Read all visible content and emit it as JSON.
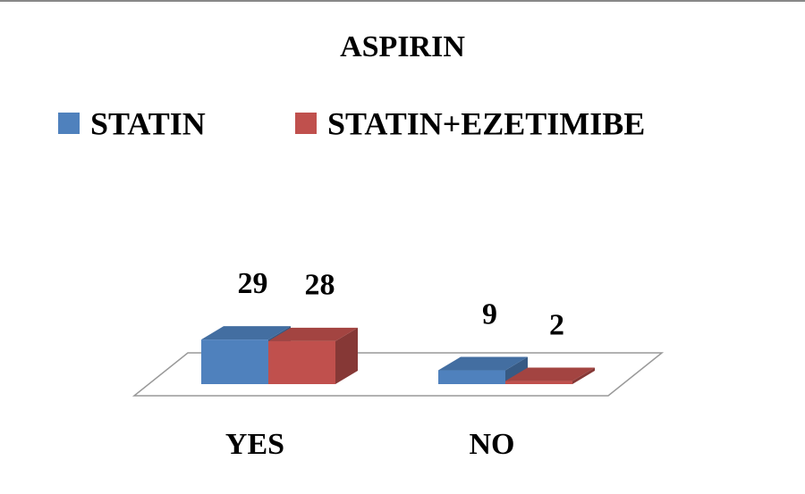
{
  "chart_data": {
    "type": "bar3d",
    "title": "ASPIRIN",
    "categories": [
      "YES",
      "NO"
    ],
    "series": [
      {
        "name": "STATIN",
        "color": "#4f81bd",
        "values": [
          29,
          9
        ]
      },
      {
        "name": "STATIN+EZETIMIBE",
        "color": "#c0504d",
        "values": [
          28,
          2
        ]
      }
    ],
    "legend": "top"
  }
}
